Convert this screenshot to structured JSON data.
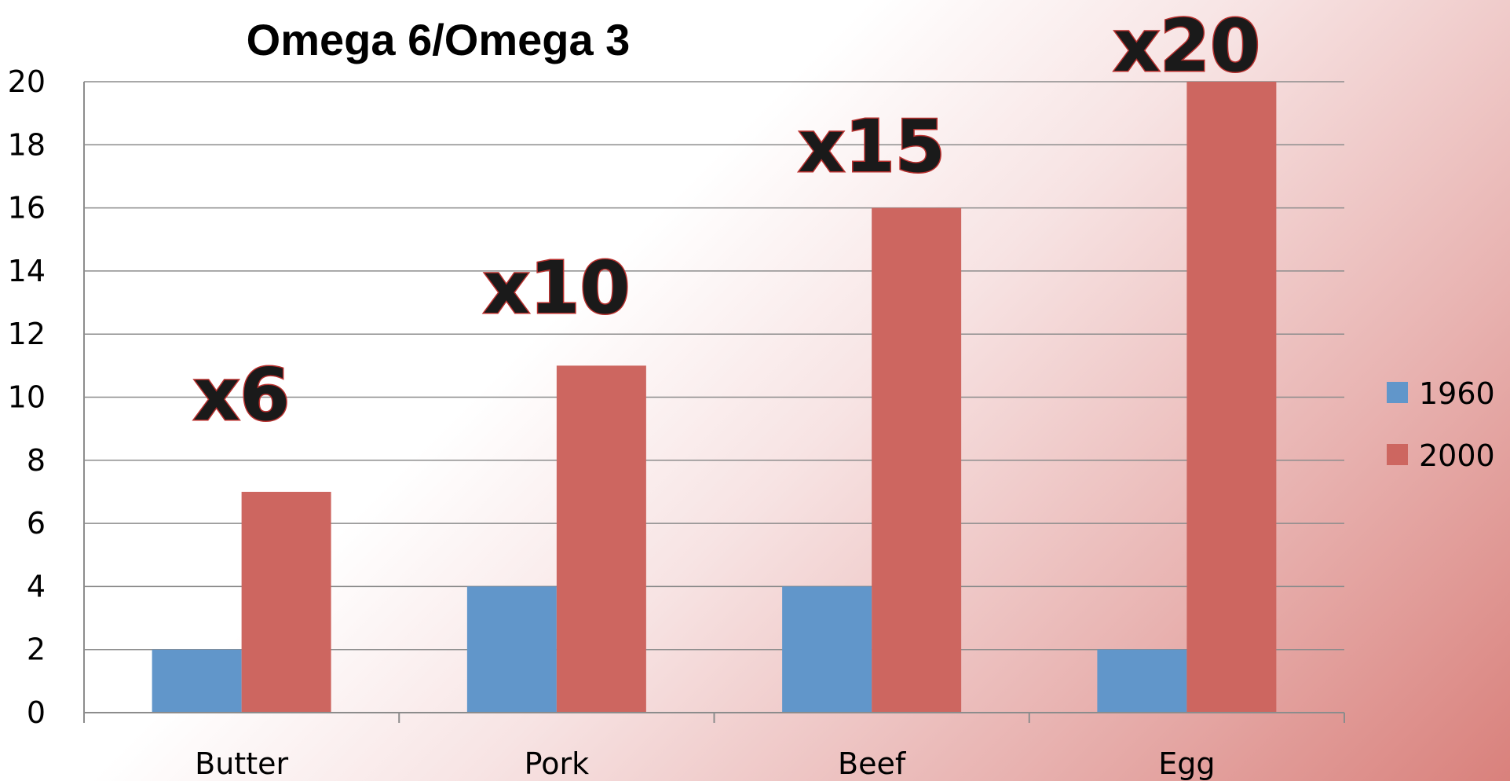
{
  "chart_data": {
    "type": "bar",
    "title": "Omega 6/Omega 3",
    "categories": [
      "Butter",
      "Pork",
      "Beef",
      "Egg"
    ],
    "series": [
      {
        "name": "1960",
        "values": [
          2,
          4,
          4,
          2
        ],
        "color": "#6196ca"
      },
      {
        "name": "2000",
        "values": [
          7,
          11,
          16,
          20
        ],
        "color": "#cd6660"
      }
    ],
    "annotations": [
      "x6",
      "x10",
      "x15",
      "x20"
    ],
    "ylim": [
      0,
      20
    ],
    "yticks": [
      0,
      2,
      4,
      6,
      8,
      10,
      12,
      14,
      16,
      18,
      20
    ],
    "grid": true,
    "legend_position": "right"
  }
}
